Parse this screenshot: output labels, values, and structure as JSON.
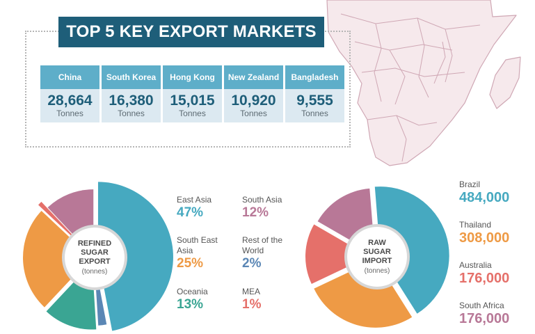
{
  "title": "TOP 5 KEY EXPORT MARKETS",
  "markets": [
    {
      "country": "China",
      "value": "28,664",
      "unit": "Tonnes"
    },
    {
      "country": "South Korea",
      "value": "16,380",
      "unit": "Tonnes"
    },
    {
      "country": "Hong Kong",
      "value": "15,015",
      "unit": "Tonnes"
    },
    {
      "country": "New Zealand",
      "value": "10,920",
      "unit": "Tonnes"
    },
    {
      "country": "Bangladesh",
      "value": "9,555",
      "unit": "Tonnes"
    }
  ],
  "refined": {
    "center_title_lines": [
      "REFINED",
      "SUGAR",
      "EXPORT"
    ],
    "center_unit": "(tonnes)",
    "legend": [
      {
        "label": "East Asia",
        "pct": "47%",
        "color": "#46a9c0"
      },
      {
        "label": "South East Asia",
        "pct": "25%",
        "color": "#ee9a45"
      },
      {
        "label": "Oceania",
        "pct": "13%",
        "color": "#3aa593"
      },
      {
        "label": "South Asia",
        "pct": "12%",
        "color": "#b87897"
      },
      {
        "label": "Rest of the World",
        "pct": "2%",
        "color": "#5b87b5"
      },
      {
        "label": "MEA",
        "pct": "1%",
        "color": "#e5706a"
      }
    ]
  },
  "raw": {
    "center_title_lines": [
      "RAW",
      "SUGAR",
      "IMPORT"
    ],
    "center_unit": "(tonnes)",
    "legend": [
      {
        "label": "Brazil",
        "value": "484,000",
        "color": "#46a9c0"
      },
      {
        "label": "Thailand",
        "value": "308,000",
        "color": "#ee9a45"
      },
      {
        "label": "Australia",
        "value": "176,000",
        "color": "#e5706a"
      },
      {
        "label": "South Africa",
        "value": "176,000",
        "color": "#b87897"
      }
    ]
  },
  "chart_data": [
    {
      "type": "table",
      "title": "TOP 5 KEY EXPORT MARKETS",
      "columns": [
        "China",
        "South Korea",
        "Hong Kong",
        "New Zealand",
        "Bangladesh"
      ],
      "values": [
        28664,
        16380,
        15015,
        10920,
        9555
      ],
      "unit": "Tonnes"
    },
    {
      "type": "pie",
      "title": "REFINED SUGAR EXPORT",
      "unit": "(tonnes)",
      "categories": [
        "East Asia",
        "South East Asia",
        "Oceania",
        "South Asia",
        "Rest of the World",
        "MEA"
      ],
      "values": [
        47,
        25,
        13,
        12,
        2,
        1
      ],
      "colors": [
        "#46a9c0",
        "#ee9a45",
        "#3aa593",
        "#b87897",
        "#5b87b5",
        "#e5706a"
      ],
      "slice_order": [
        "East Asia",
        "Rest of the World",
        "Oceania",
        "South East Asia",
        "MEA",
        "South Asia"
      ]
    },
    {
      "type": "pie",
      "title": "RAW SUGAR IMPORT",
      "unit": "(tonnes)",
      "categories": [
        "Brazil",
        "Thailand",
        "Australia",
        "South Africa"
      ],
      "values": [
        484000,
        308000,
        176000,
        176000
      ],
      "colors": [
        "#46a9c0",
        "#ee9a45",
        "#e5706a",
        "#b87897"
      ]
    }
  ]
}
